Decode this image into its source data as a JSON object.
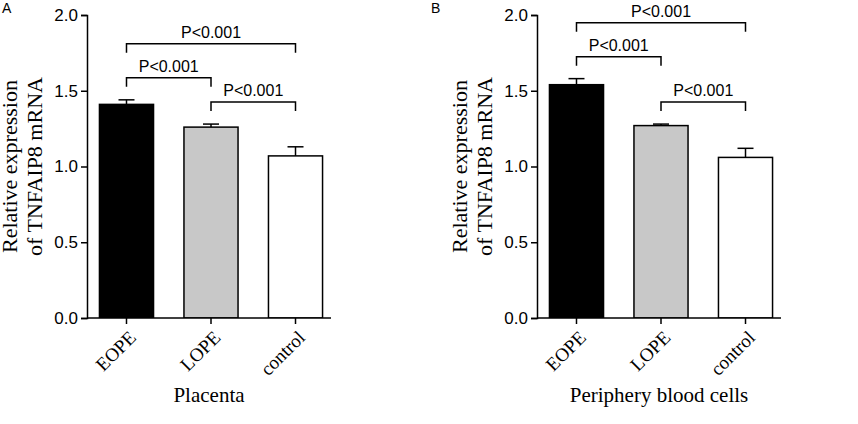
{
  "chart_data": [
    {
      "type": "bar",
      "panel_label": "A",
      "x_label": "Placenta",
      "y_label": [
        "Relative expression",
        "of TNFAIP8 mRNA"
      ],
      "categories": [
        "EOPE",
        "LOPE",
        "control"
      ],
      "values": [
        1.41,
        1.26,
        1.07
      ],
      "errors": [
        0.03,
        0.02,
        0.06
      ],
      "colors": [
        "#000000",
        "#c8c8c8",
        "#ffffff"
      ],
      "ylim": [
        0,
        2
      ],
      "yticks": [
        {
          "value": 0,
          "label": "0.0"
        },
        {
          "value": 0.5,
          "label": "0.5"
        },
        {
          "value": 1,
          "label": "1.0"
        },
        {
          "value": 1.5,
          "label": "1.5"
        },
        {
          "value": 2,
          "label": "2.0"
        }
      ],
      "comparisons": [
        {
          "pair": [
            0,
            2
          ],
          "label": "P<0.001"
        },
        {
          "pair": [
            0,
            1
          ],
          "label": "P<0.001"
        },
        {
          "pair": [
            1,
            2
          ],
          "label": "P<0.001"
        }
      ]
    },
    {
      "type": "bar",
      "panel_label": "B",
      "x_label": "Periphery blood cells",
      "y_label": [
        "Relative expression",
        "of TNFAIP8 mRNA"
      ],
      "categories": [
        "EOPE",
        "LOPE",
        "control"
      ],
      "values": [
        1.54,
        1.27,
        1.06
      ],
      "errors": [
        0.04,
        0.01,
        0.06
      ],
      "colors": [
        "#000000",
        "#c8c8c8",
        "#ffffff"
      ],
      "ylim": [
        0,
        2
      ],
      "yticks": [
        {
          "value": 0,
          "label": "0.0"
        },
        {
          "value": 0.5,
          "label": "0.5"
        },
        {
          "value": 1,
          "label": "1.0"
        },
        {
          "value": 1.5,
          "label": "1.5"
        },
        {
          "value": 2,
          "label": "2.0"
        }
      ],
      "comparisons": [
        {
          "pair": [
            0,
            2
          ],
          "label": "P<0.001"
        },
        {
          "pair": [
            0,
            1
          ],
          "label": "P<0.001"
        },
        {
          "pair": [
            1,
            2
          ],
          "label": "P<0.001"
        }
      ]
    }
  ]
}
